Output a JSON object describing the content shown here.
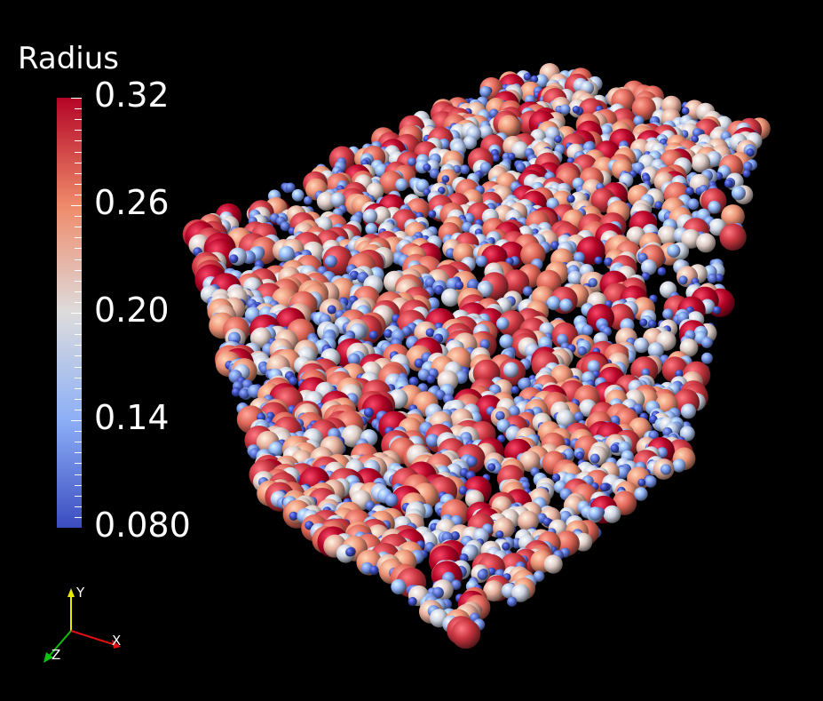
{
  "legend": {
    "title": "Radius",
    "ticks": [
      "0.32",
      "0.26",
      "0.20",
      "0.14",
      "0.080"
    ],
    "range": [
      0.08,
      0.32
    ],
    "colors": {
      "high": "#b40426",
      "mid": "#dddcdc",
      "low": "#3b4cc0"
    }
  },
  "axes": {
    "x": "X",
    "y": "Y",
    "z": "Z"
  },
  "scene": {
    "background": "#000000"
  }
}
